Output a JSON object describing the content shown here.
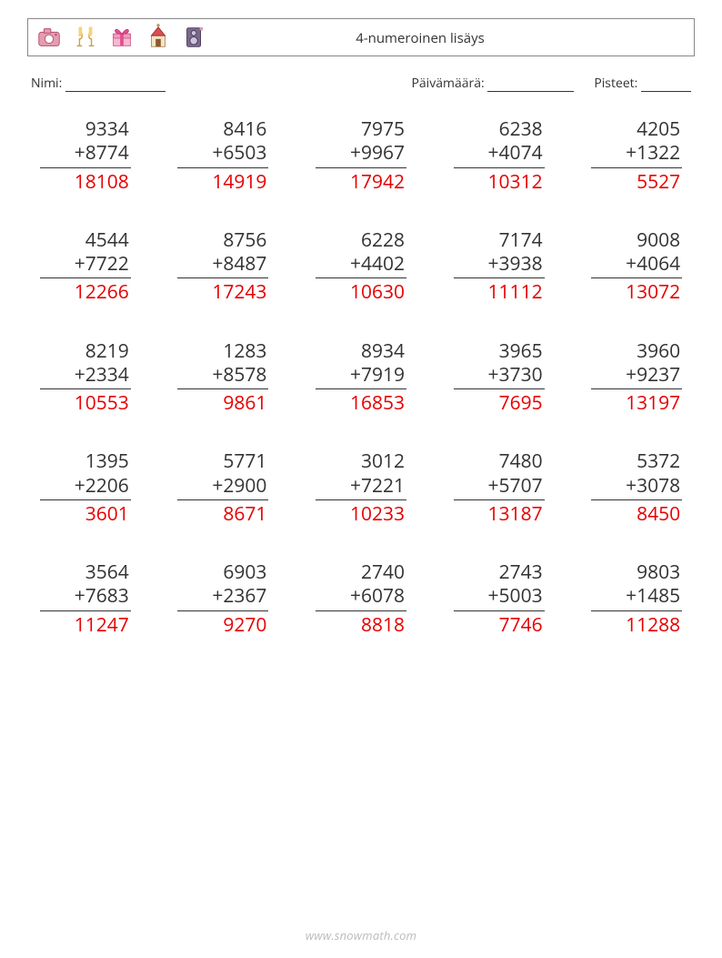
{
  "header": {
    "title": "4-numeroinen lisäys",
    "icons": [
      "camera-icon",
      "glasses-icon",
      "gift-icon",
      "church-icon",
      "speaker-icon"
    ]
  },
  "labels": {
    "name": "Nimi:",
    "date": "Päivämäärä:",
    "score": "Pisteet:"
  },
  "operator": "+",
  "style": {
    "text_color": "#333333",
    "answer_color": "#e60000",
    "border_color": "#888888",
    "rule_color": "#333333",
    "background": "#ffffff",
    "font_size_problem": 21,
    "font_size_header": 15,
    "font_size_labels": 14,
    "font_size_footer": 13,
    "columns": 5,
    "rows": 5
  },
  "problems": [
    {
      "a": "9334",
      "b": "8774",
      "ans": "18108"
    },
    {
      "a": "8416",
      "b": "6503",
      "ans": "14919"
    },
    {
      "a": "7975",
      "b": "9967",
      "ans": "17942"
    },
    {
      "a": "6238",
      "b": "4074",
      "ans": "10312"
    },
    {
      "a": "4205",
      "b": "1322",
      "ans": "5527"
    },
    {
      "a": "4544",
      "b": "7722",
      "ans": "12266"
    },
    {
      "a": "8756",
      "b": "8487",
      "ans": "17243"
    },
    {
      "a": "6228",
      "b": "4402",
      "ans": "10630"
    },
    {
      "a": "7174",
      "b": "3938",
      "ans": "11112"
    },
    {
      "a": "9008",
      "b": "4064",
      "ans": "13072"
    },
    {
      "a": "8219",
      "b": "2334",
      "ans": "10553"
    },
    {
      "a": "1283",
      "b": "8578",
      "ans": "9861"
    },
    {
      "a": "8934",
      "b": "7919",
      "ans": "16853"
    },
    {
      "a": "3965",
      "b": "3730",
      "ans": "7695"
    },
    {
      "a": "3960",
      "b": "9237",
      "ans": "13197"
    },
    {
      "a": "1395",
      "b": "2206",
      "ans": "3601"
    },
    {
      "a": "5771",
      "b": "2900",
      "ans": "8671"
    },
    {
      "a": "3012",
      "b": "7221",
      "ans": "10233"
    },
    {
      "a": "7480",
      "b": "5707",
      "ans": "13187"
    },
    {
      "a": "5372",
      "b": "3078",
      "ans": "8450"
    },
    {
      "a": "3564",
      "b": "7683",
      "ans": "11247"
    },
    {
      "a": "6903",
      "b": "2367",
      "ans": "9270"
    },
    {
      "a": "2740",
      "b": "6078",
      "ans": "8818"
    },
    {
      "a": "2743",
      "b": "5003",
      "ans": "7746"
    },
    {
      "a": "9803",
      "b": "1485",
      "ans": "11288"
    }
  ],
  "footer": "www.snowmath.com"
}
